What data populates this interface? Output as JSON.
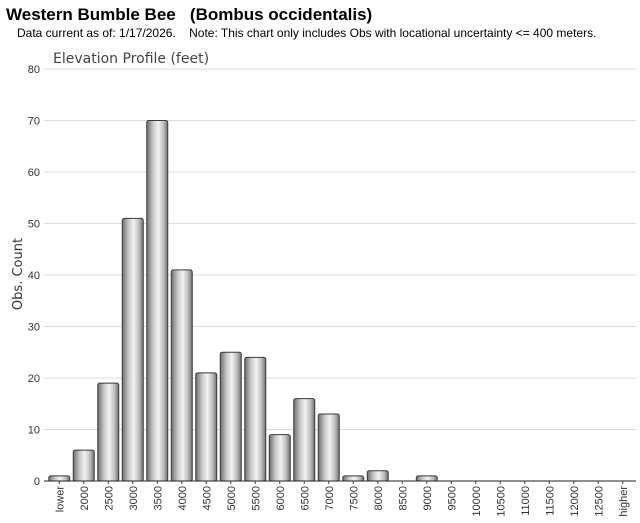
{
  "header": {
    "title": "Western Bumble Bee   (Bombus occidentalis)",
    "subtitle": "Data current as of: 1/17/2026.    Note: This chart only includes Obs with locational uncertainty <= 400 meters."
  },
  "chart_data": {
    "type": "bar",
    "title": "Elevation Profile (feet)",
    "xlabel": "",
    "ylabel": "Obs. Count",
    "ylim": [
      0,
      80
    ],
    "yticks": [
      0,
      10,
      20,
      30,
      40,
      50,
      60,
      70,
      80
    ],
    "grid": true,
    "categories": [
      "lower",
      "2000",
      "2500",
      "3000",
      "3500",
      "4000",
      "4500",
      "5000",
      "5500",
      "6000",
      "6500",
      "7000",
      "7500",
      "8000",
      "8500",
      "9000",
      "9500",
      "10000",
      "10500",
      "11000",
      "11500",
      "12000",
      "12500",
      "higher"
    ],
    "values": [
      1,
      6,
      19,
      51,
      70,
      41,
      21,
      25,
      24,
      9,
      16,
      13,
      1,
      2,
      0,
      1,
      0,
      0,
      0,
      0,
      0,
      0,
      0,
      0
    ],
    "bar_color": "#9a9a9a"
  }
}
